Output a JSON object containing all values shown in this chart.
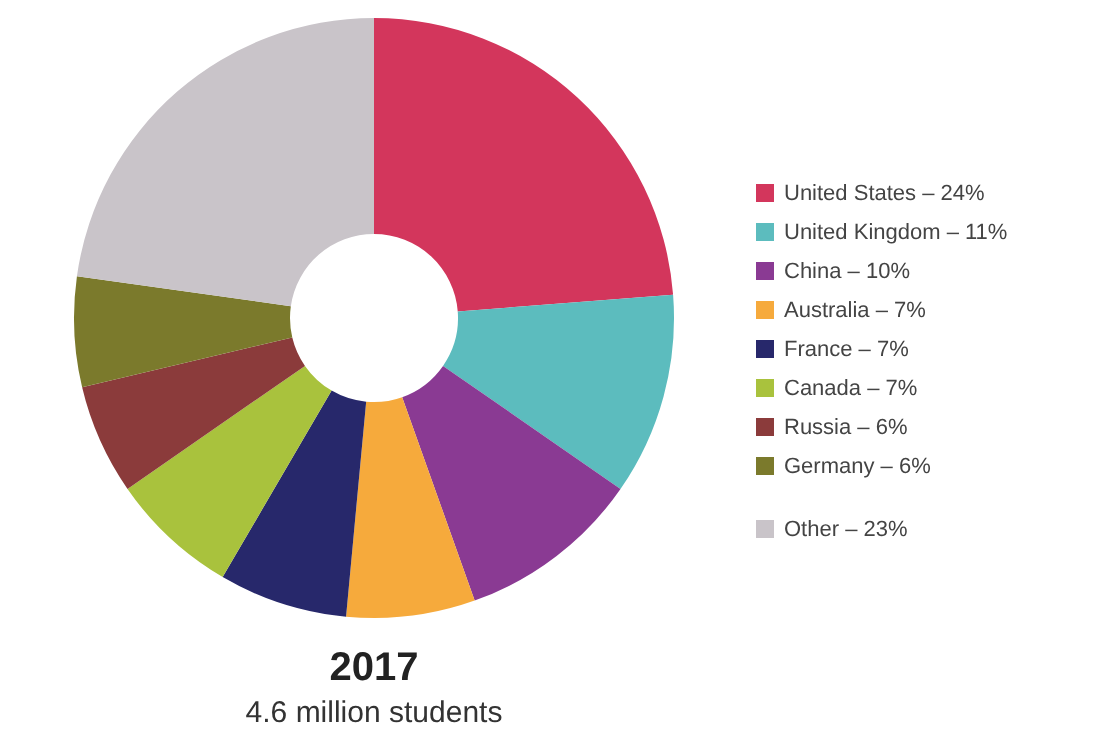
{
  "chart_data": {
    "type": "donut",
    "title": "2017",
    "subtitle": "4.6 million students",
    "categories": [
      "United States – 24%",
      "United Kingdom – 11%",
      "China – 10%",
      "Australia – 7%",
      "France – 7%",
      "Canada – 7%",
      "Russia – 6%",
      "Germany – 6%",
      "Other – 23%"
    ],
    "values": [
      24,
      11,
      10,
      7,
      7,
      7,
      6,
      6,
      23
    ],
    "colors": [
      "#d3365c",
      "#5cbcbe",
      "#8a3a93",
      "#f6aa3c",
      "#27286b",
      "#a9c23d",
      "#8b3b3b",
      "#7b7a2c",
      "#c9c4c9"
    ],
    "legend": "right"
  }
}
